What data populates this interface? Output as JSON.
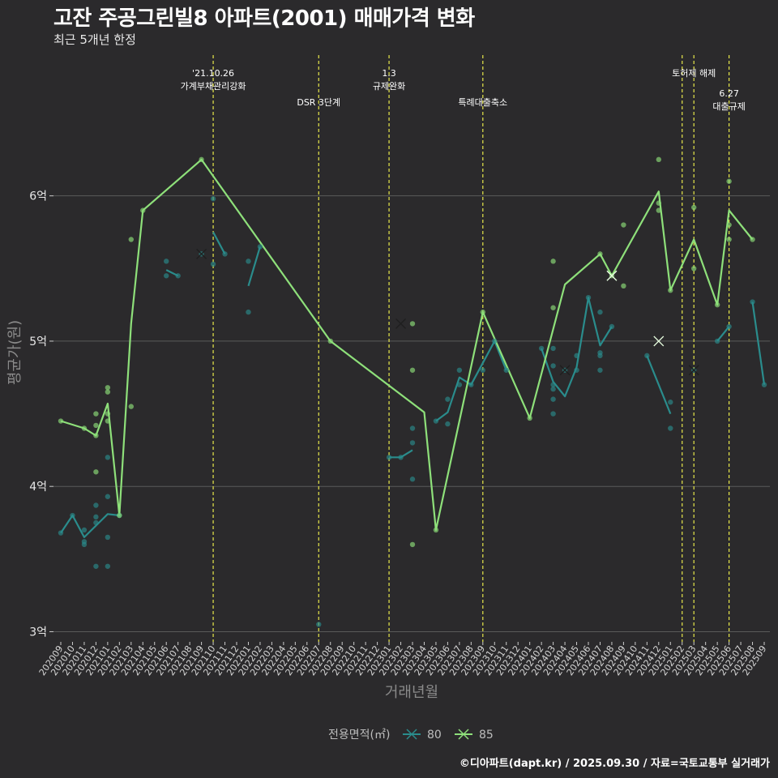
{
  "title": "고잔 주공그린빌8 아파트(2001) 매매가격 변화",
  "subtitle": "최근 5개년 한정",
  "caption": "©디아파트(dapt.kr) / 2025.09.30 / 자료=국토교통부 실거래가",
  "colors": {
    "background": "#2b2a2c",
    "grid": "#5a5a5a",
    "s80": "#2a8c8c",
    "s85": "#8ee07a",
    "event": "#e8e84a"
  },
  "chart_data": {
    "type": "line",
    "title": "고잔 주공그린빌8 아파트(2001) 매매가격 변화",
    "xlabel": "거래년월",
    "ylabel": "평균가(원)",
    "ylim": [
      2.93,
      6.98
    ],
    "y_ticks": [
      {
        "value": 3,
        "label": "3억"
      },
      {
        "value": 4,
        "label": "4억"
      },
      {
        "value": 5,
        "label": "5억"
      },
      {
        "value": 6,
        "label": "6억"
      }
    ],
    "months": [
      "202009",
      "202010",
      "202011",
      "202012",
      "202101",
      "202102",
      "202103",
      "202104",
      "202105",
      "202106",
      "202107",
      "202108",
      "202109",
      "202110",
      "202111",
      "202112",
      "202201",
      "202202",
      "202203",
      "202204",
      "202205",
      "202206",
      "202207",
      "202208",
      "202209",
      "202210",
      "202211",
      "202212",
      "202301",
      "202302",
      "202303",
      "202304",
      "202305",
      "202306",
      "202307",
      "202308",
      "202309",
      "202310",
      "202311",
      "202312",
      "202401",
      "202402",
      "202403",
      "202404",
      "202405",
      "202406",
      "202407",
      "202408",
      "202409",
      "202410",
      "202411",
      "202412",
      "202501",
      "202502",
      "202503",
      "202504",
      "202505",
      "202506",
      "202507",
      "202508",
      "202509"
    ],
    "legend_title": "전용면적(㎡)",
    "series": [
      {
        "name": "80",
        "color": "#2a8c8c",
        "line": [
          [
            "202009",
            3.68
          ],
          [
            "202010",
            3.8
          ],
          [
            "202011",
            3.65
          ],
          [
            "202012",
            3.73
          ],
          [
            "202101",
            3.81
          ],
          [
            "202102",
            3.8
          ],
          null,
          [
            "202106",
            5.49
          ],
          [
            "202107",
            5.45
          ],
          null,
          [
            "202110",
            5.75
          ],
          [
            "202111",
            5.6
          ],
          null,
          [
            "202201",
            5.38
          ],
          [
            "202202",
            5.65
          ],
          null,
          [
            "202301",
            4.2
          ],
          [
            "202302",
            4.2
          ],
          [
            "202303",
            4.25
          ],
          null,
          [
            "202305",
            4.45
          ],
          [
            "202306",
            4.51
          ],
          [
            "202307",
            4.75
          ],
          [
            "202308",
            4.7
          ],
          [
            "202309",
            4.85
          ],
          [
            "202310",
            5.0
          ],
          [
            "202311",
            4.8
          ],
          null,
          [
            "202402",
            4.95
          ],
          [
            "202403",
            4.72
          ],
          [
            "202404",
            4.62
          ],
          [
            "202405",
            4.82
          ],
          [
            "202406",
            5.3
          ],
          [
            "202407",
            4.97
          ],
          [
            "202408",
            5.1
          ],
          null,
          [
            "202411",
            4.9
          ],
          [
            "202501",
            4.5
          ],
          null,
          [
            "202503",
            4.8
          ],
          null,
          [
            "202505",
            5.0
          ],
          [
            "202506",
            5.1
          ],
          null,
          [
            "202508",
            5.27
          ],
          [
            "202509",
            4.7
          ]
        ],
        "points": [
          [
            "202009",
            3.68
          ],
          [
            "202010",
            3.8
          ],
          [
            "202011",
            3.7
          ],
          [
            "202011",
            3.62
          ],
          [
            "202011",
            3.6
          ],
          [
            "202012",
            3.45
          ],
          [
            "202012",
            3.75
          ],
          [
            "202012",
            3.79
          ],
          [
            "202012",
            3.87
          ],
          [
            "202101",
            3.45
          ],
          [
            "202101",
            3.65
          ],
          [
            "202101",
            3.93
          ],
          [
            "202101",
            4.2
          ],
          [
            "202102",
            3.8
          ],
          [
            "202106",
            5.55
          ],
          [
            "202106",
            5.45
          ],
          [
            "202107",
            5.45
          ],
          [
            "202109",
            5.6
          ],
          [
            "202110",
            5.53
          ],
          [
            "202110",
            5.98
          ],
          [
            "202111",
            5.6
          ],
          [
            "202201",
            5.55
          ],
          [
            "202201",
            5.2
          ],
          [
            "202202",
            5.65
          ],
          [
            "202207",
            3.05
          ],
          [
            "202301",
            4.2
          ],
          [
            "202302",
            4.2
          ],
          [
            "202303",
            4.4
          ],
          [
            "202303",
            4.3
          ],
          [
            "202303",
            4.05
          ],
          [
            "202305",
            4.45
          ],
          [
            "202306",
            4.6
          ],
          [
            "202306",
            4.43
          ],
          [
            "202307",
            4.8
          ],
          [
            "202307",
            4.7
          ],
          [
            "202308",
            4.7
          ],
          [
            "202309",
            4.8
          ],
          [
            "202310",
            5.0
          ],
          [
            "202311",
            4.8
          ],
          [
            "202402",
            4.95
          ],
          [
            "202403",
            4.95
          ],
          [
            "202403",
            4.83
          ],
          [
            "202403",
            4.7
          ],
          [
            "202403",
            4.67
          ],
          [
            "202403",
            4.6
          ],
          [
            "202403",
            4.5
          ],
          [
            "202404",
            4.8
          ],
          [
            "202405",
            4.8
          ],
          [
            "202405",
            4.9
          ],
          [
            "202406",
            5.3
          ],
          [
            "202407",
            4.8
          ],
          [
            "202407",
            4.9
          ],
          [
            "202407",
            4.92
          ],
          [
            "202407",
            5.2
          ],
          [
            "202408",
            5.1
          ],
          [
            "202411",
            4.9
          ],
          [
            "202501",
            4.58
          ],
          [
            "202501",
            4.4
          ],
          [
            "202503",
            4.8
          ],
          [
            "202505",
            5.0
          ],
          [
            "202506",
            5.1
          ],
          [
            "202508",
            5.27
          ],
          [
            "202509",
            4.7
          ]
        ],
        "markers": [
          [
            "202109",
            5.6
          ],
          [
            "202302",
            5.12
          ],
          [
            "202404",
            4.8
          ],
          [
            "202503",
            4.8
          ]
        ]
      },
      {
        "name": "85",
        "color": "#8ee07a",
        "line": [
          [
            "202009",
            4.45
          ],
          [
            "202011",
            4.4
          ],
          [
            "202012",
            4.35
          ],
          [
            "202101",
            4.57
          ],
          [
            "202102",
            3.8
          ],
          [
            "202103",
            5.12
          ],
          [
            "202104",
            5.9
          ],
          [
            "202109",
            6.25
          ],
          [
            "202208",
            5.0
          ],
          [
            "202304",
            4.51
          ],
          [
            "202305",
            3.7
          ],
          [
            "202309",
            5.2
          ],
          [
            "202401",
            4.47
          ],
          [
            "202404",
            5.39
          ],
          [
            "202407",
            5.6
          ],
          [
            "202408",
            5.45
          ],
          [
            "202412",
            6.03
          ],
          [
            "202501",
            5.35
          ],
          [
            "202503",
            5.7
          ],
          [
            "202505",
            5.25
          ],
          [
            "202506",
            5.9
          ],
          [
            "202508",
            5.7
          ]
        ],
        "points": [
          [
            "202009",
            4.45
          ],
          [
            "202011",
            4.4
          ],
          [
            "202012",
            4.5
          ],
          [
            "202012",
            4.42
          ],
          [
            "202012",
            4.35
          ],
          [
            "202012",
            4.1
          ],
          [
            "202101",
            4.68
          ],
          [
            "202101",
            4.65
          ],
          [
            "202101",
            4.5
          ],
          [
            "202101",
            4.45
          ],
          [
            "202102",
            3.8
          ],
          [
            "202103",
            5.7
          ],
          [
            "202103",
            4.55
          ],
          [
            "202104",
            5.9
          ],
          [
            "202109",
            6.25
          ],
          [
            "202208",
            5.0
          ],
          [
            "202303",
            5.12
          ],
          [
            "202303",
            4.8
          ],
          [
            "202303",
            3.6
          ],
          [
            "202305",
            3.7
          ],
          [
            "202309",
            5.2
          ],
          [
            "202401",
            4.47
          ],
          [
            "202403",
            5.55
          ],
          [
            "202403",
            5.23
          ],
          [
            "202407",
            5.6
          ],
          [
            "202408",
            5.45
          ],
          [
            "202409",
            5.8
          ],
          [
            "202409",
            5.38
          ],
          [
            "202412",
            6.25
          ],
          [
            "202412",
            5.95
          ],
          [
            "202412",
            5.9
          ],
          [
            "202501",
            5.35
          ],
          [
            "202503",
            5.92
          ],
          [
            "202503",
            5.5
          ],
          [
            "202505",
            5.25
          ],
          [
            "202506",
            6.1
          ],
          [
            "202506",
            5.7
          ],
          [
            "202506",
            5.8
          ],
          [
            "202508",
            5.7
          ]
        ],
        "markers": [
          [
            "202408",
            5.45
          ],
          [
            "202412",
            5.0
          ]
        ]
      }
    ],
    "events": [
      {
        "month": "202110",
        "offset": 0,
        "lines": [
          "'21.10.26",
          "가계부채관리강화"
        ],
        "level": 1
      },
      {
        "month": "202207",
        "offset": 0,
        "lines": [
          "DSR 3단계"
        ],
        "level": 2
      },
      {
        "month": "202301",
        "offset": 0,
        "lines": [
          "1.3",
          "규제완화"
        ],
        "level": 1
      },
      {
        "month": "202309",
        "offset": 0,
        "lines": [
          "특례대출축소"
        ],
        "level": 2
      },
      {
        "month": "202502",
        "offset": 0,
        "lines": [],
        "level": 1
      },
      {
        "month": "202503",
        "offset": 0,
        "lines": [
          "토허제 해제"
        ],
        "level": 1
      },
      {
        "month": "202506",
        "offset": 0,
        "lines": [
          "6.27",
          "대출규제"
        ],
        "level": 2
      }
    ]
  }
}
